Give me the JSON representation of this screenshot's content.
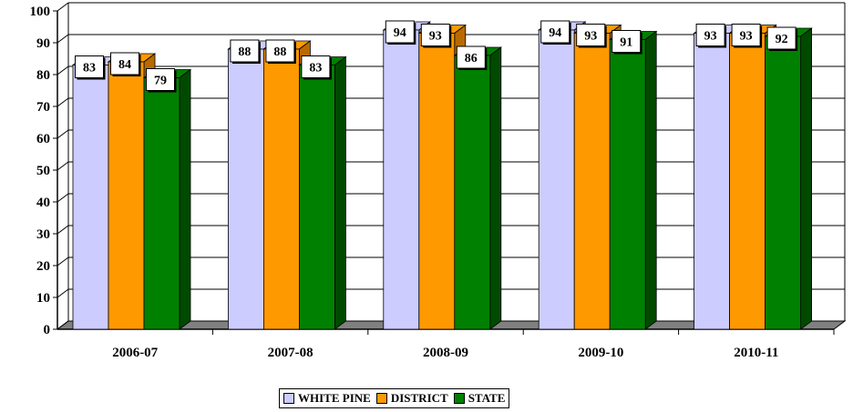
{
  "chart_data": {
    "type": "bar",
    "title": "",
    "xlabel": "",
    "ylabel": "",
    "ylim": [
      0,
      100
    ],
    "yticks": [
      0,
      10,
      20,
      30,
      40,
      50,
      60,
      70,
      80,
      90,
      100
    ],
    "categories": [
      "2006-07",
      "2007-08",
      "2008-09",
      "2009-10",
      "2010-11"
    ],
    "series": [
      {
        "name": "WHITE PINE",
        "color": "#CCCCFF",
        "side_color": "#8C8CB8",
        "values": [
          83,
          88,
          94,
          94,
          93
        ]
      },
      {
        "name": "DISTRICT",
        "color": "#FF9900",
        "side_color": "#B86A00",
        "values": [
          84,
          88,
          93,
          93,
          93
        ]
      },
      {
        "name": "STATE",
        "color": "#008000",
        "side_color": "#004A00",
        "values": [
          79,
          83,
          86,
          91,
          92
        ]
      }
    ],
    "grid": true,
    "legend_position": "bottom",
    "data_labels": true
  }
}
